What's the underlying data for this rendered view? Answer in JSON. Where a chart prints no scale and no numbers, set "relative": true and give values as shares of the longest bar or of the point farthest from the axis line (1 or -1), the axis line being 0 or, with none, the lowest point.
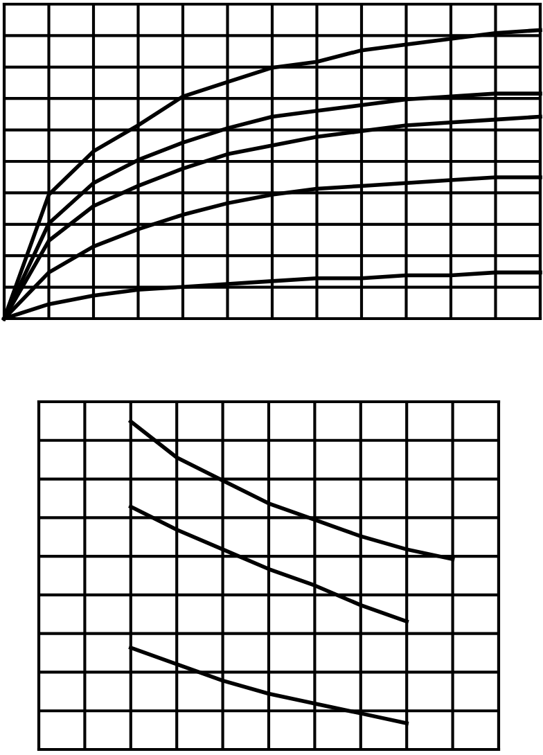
{
  "chart_data": [
    {
      "type": "line",
      "relative": true,
      "grid": true,
      "categories": [
        null,
        null,
        null,
        null,
        null,
        null,
        null,
        null,
        null,
        null,
        null,
        null,
        null
      ],
      "series": [
        {
          "color": "#000000",
          "values": [
            0,
            0.43,
            0.58,
            0.67,
            0.77,
            0.82,
            0.87,
            0.89,
            0.93,
            0.95,
            0.97,
            0.99,
            1
          ]
        },
        {
          "color": "#000000",
          "values": [
            0,
            0.33,
            0.47,
            0.55,
            0.61,
            0.66,
            0.7,
            0.72,
            0.74,
            0.76,
            0.77,
            0.78,
            0.78
          ]
        },
        {
          "color": "#000000",
          "values": [
            0,
            0.27,
            0.39,
            0.46,
            0.52,
            0.57,
            0.6,
            0.63,
            0.65,
            0.67,
            0.68,
            0.69,
            0.7
          ]
        },
        {
          "color": "#000000",
          "values": [
            0,
            0.16,
            0.25,
            0.31,
            0.36,
            0.4,
            0.43,
            0.45,
            0.46,
            0.47,
            0.48,
            0.49,
            0.49
          ]
        },
        {
          "color": "#000000",
          "values": [
            0,
            0.05,
            0.08,
            0.1,
            0.11,
            0.12,
            0.13,
            0.14,
            0.14,
            0.15,
            0.15,
            0.16,
            0.16
          ]
        }
      ]
    },
    {
      "type": "line",
      "relative": true,
      "grid": true,
      "categories": [
        null,
        null,
        null,
        null,
        null,
        null,
        null,
        null,
        null,
        null,
        null
      ],
      "series": [
        {
          "color": "#000000",
          "values": [
            null,
            null,
            1,
            0.89,
            0.82,
            0.75,
            0.7,
            0.65,
            0.61,
            0.58,
            null
          ]
        },
        {
          "color": "#000000",
          "values": [
            null,
            null,
            0.74,
            0.67,
            0.61,
            0.55,
            0.5,
            0.44,
            0.39,
            null,
            null
          ]
        },
        {
          "color": "#000000",
          "values": [
            null,
            null,
            0.31,
            0.26,
            0.21,
            0.17,
            0.14,
            0.11,
            0.08,
            null,
            null
          ]
        }
      ]
    }
  ]
}
